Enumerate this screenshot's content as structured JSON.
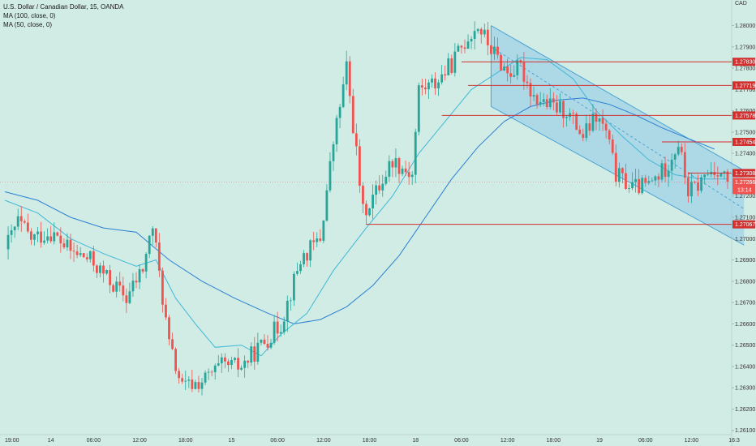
{
  "legend": {
    "symbol": "U.S. Dollar / Canadian Dollar, 15, OANDA",
    "ma100": "MA (100, close, 0)",
    "ma50": "MA (50, close, 0)"
  },
  "axis": {
    "currency": "CAD"
  },
  "colors": {
    "background": "#d1ece4",
    "candle_up": "#26a69a",
    "candle_down": "#ef5350",
    "ma100": "#2a7fd4",
    "ma50": "#3fb8d8",
    "level_line": "#d32f2f",
    "channel_fill": "#8fc8e6",
    "channel_line": "#4aa3d6"
  },
  "chart_data": {
    "type": "candlestick",
    "ylim": [
      1.2608,
      1.2812
    ],
    "y_ticks": [
      "1.26100",
      "1.26200",
      "1.26300",
      "1.26400",
      "1.26500",
      "1.26600",
      "1.26700",
      "1.26800",
      "1.26900",
      "1.27000",
      "1.27100",
      "1.27200",
      "1.27300",
      "1.27400",
      "1.27500",
      "1.27600",
      "1.27700",
      "1.27800",
      "1.27900",
      "1.28000",
      "1.28100"
    ],
    "x_ticks": [
      "19:00",
      "14",
      "06:00",
      "12:00",
      "18:00",
      "15",
      "06:00",
      "12:00",
      "18:00",
      "18",
      "06:00",
      "12:00",
      "18:00",
      "19",
      "06:00",
      "12:00",
      "16:3"
    ],
    "x_tick_bars": [
      0,
      14,
      27,
      41,
      55,
      69,
      83,
      97,
      111,
      125,
      139,
      153,
      167,
      181,
      195,
      209,
      222
    ],
    "key_prices": [
      [
        0,
        1.2695
      ],
      [
        4,
        1.2708
      ],
      [
        8,
        1.27
      ],
      [
        14,
        1.2703
      ],
      [
        20,
        1.2694
      ],
      [
        26,
        1.269
      ],
      [
        32,
        1.268
      ],
      [
        37,
        1.2672
      ],
      [
        42,
        1.2686
      ],
      [
        45,
        1.2706
      ],
      [
        50,
        1.265
      ],
      [
        54,
        1.263
      ],
      [
        60,
        1.2633
      ],
      [
        66,
        1.264
      ],
      [
        72,
        1.264
      ],
      [
        78,
        1.265
      ],
      [
        84,
        1.266
      ],
      [
        90,
        1.269
      ],
      [
        96,
        1.27
      ],
      [
        100,
        1.2745
      ],
      [
        104,
        1.278
      ],
      [
        107,
        1.274
      ],
      [
        109,
        1.2712
      ],
      [
        113,
        1.2722
      ],
      [
        118,
        1.2737
      ],
      [
        124,
        1.273
      ],
      [
        126,
        1.277
      ],
      [
        131,
        1.2773
      ],
      [
        136,
        1.2782
      ],
      [
        141,
        1.2795
      ],
      [
        144,
        1.28
      ],
      [
        148,
        1.2789
      ],
      [
        153,
        1.2778
      ],
      [
        157,
        1.278
      ],
      [
        161,
        1.2767
      ],
      [
        166,
        1.2762
      ],
      [
        171,
        1.276
      ],
      [
        176,
        1.2748
      ],
      [
        180,
        1.2757
      ],
      [
        183,
        1.275
      ],
      [
        186,
        1.273
      ],
      [
        191,
        1.2724
      ],
      [
        196,
        1.2725
      ],
      [
        201,
        1.2733
      ],
      [
        205,
        1.2745
      ],
      [
        208,
        1.2722
      ],
      [
        211,
        1.2725
      ],
      [
        214,
        1.2731
      ],
      [
        217,
        1.2733
      ],
      [
        220,
        1.2727
      ]
    ],
    "ma50": [
      [
        0,
        1.2718
      ],
      [
        10,
        1.2712
      ],
      [
        20,
        1.27
      ],
      [
        30,
        1.2693
      ],
      [
        40,
        1.2687
      ],
      [
        46,
        1.269
      ],
      [
        52,
        1.2672
      ],
      [
        58,
        1.266
      ],
      [
        64,
        1.2649
      ],
      [
        72,
        1.265
      ],
      [
        78,
        1.2645
      ],
      [
        84,
        1.2655
      ],
      [
        92,
        1.2665
      ],
      [
        100,
        1.2685
      ],
      [
        110,
        1.2705
      ],
      [
        118,
        1.272
      ],
      [
        126,
        1.274
      ],
      [
        134,
        1.2755
      ],
      [
        142,
        1.277
      ],
      [
        150,
        1.2778
      ],
      [
        157,
        1.2785
      ],
      [
        165,
        1.2784
      ],
      [
        173,
        1.2775
      ],
      [
        180,
        1.276
      ],
      [
        188,
        1.2748
      ],
      [
        196,
        1.2737
      ],
      [
        204,
        1.273
      ],
      [
        212,
        1.2728
      ],
      [
        220,
        1.2728
      ]
    ],
    "ma100": [
      [
        0,
        1.2722
      ],
      [
        10,
        1.2718
      ],
      [
        20,
        1.271
      ],
      [
        30,
        1.2705
      ],
      [
        40,
        1.2703
      ],
      [
        50,
        1.269
      ],
      [
        60,
        1.268
      ],
      [
        70,
        1.2672
      ],
      [
        80,
        1.2665
      ],
      [
        88,
        1.266
      ],
      [
        96,
        1.2662
      ],
      [
        104,
        1.2668
      ],
      [
        112,
        1.2678
      ],
      [
        120,
        1.2692
      ],
      [
        128,
        1.271
      ],
      [
        136,
        1.2728
      ],
      [
        144,
        1.2743
      ],
      [
        152,
        1.2755
      ],
      [
        160,
        1.2762
      ],
      [
        168,
        1.2765
      ],
      [
        176,
        1.2766
      ],
      [
        184,
        1.2763
      ],
      [
        192,
        1.2758
      ],
      [
        200,
        1.2752
      ],
      [
        208,
        1.2747
      ],
      [
        216,
        1.2742
      ]
    ],
    "levels": [
      {
        "label": "1.27830",
        "price": 1.2783,
        "from_bar": 139
      },
      {
        "label": "1.27719",
        "price": 1.27719,
        "from_bar": 141
      },
      {
        "label": "1.27578",
        "price": 1.27578,
        "from_bar": 133
      },
      {
        "label": "1.27454",
        "price": 1.27454,
        "from_bar": 200
      },
      {
        "label": "1.27308",
        "price": 1.27308,
        "from_bar": 208
      },
      {
        "label": "1.27067",
        "price": 1.27067,
        "from_bar": 110
      }
    ],
    "current_price": {
      "label": "1.27266",
      "price": 1.27266,
      "countdown": "13:14"
    },
    "channel": {
      "start_bar": 148,
      "end_bar": 225,
      "upper": [
        1.28,
        1.2732
      ],
      "middle": [
        1.279,
        1.2714
      ],
      "lower": [
        1.2762,
        1.2697
      ]
    }
  }
}
